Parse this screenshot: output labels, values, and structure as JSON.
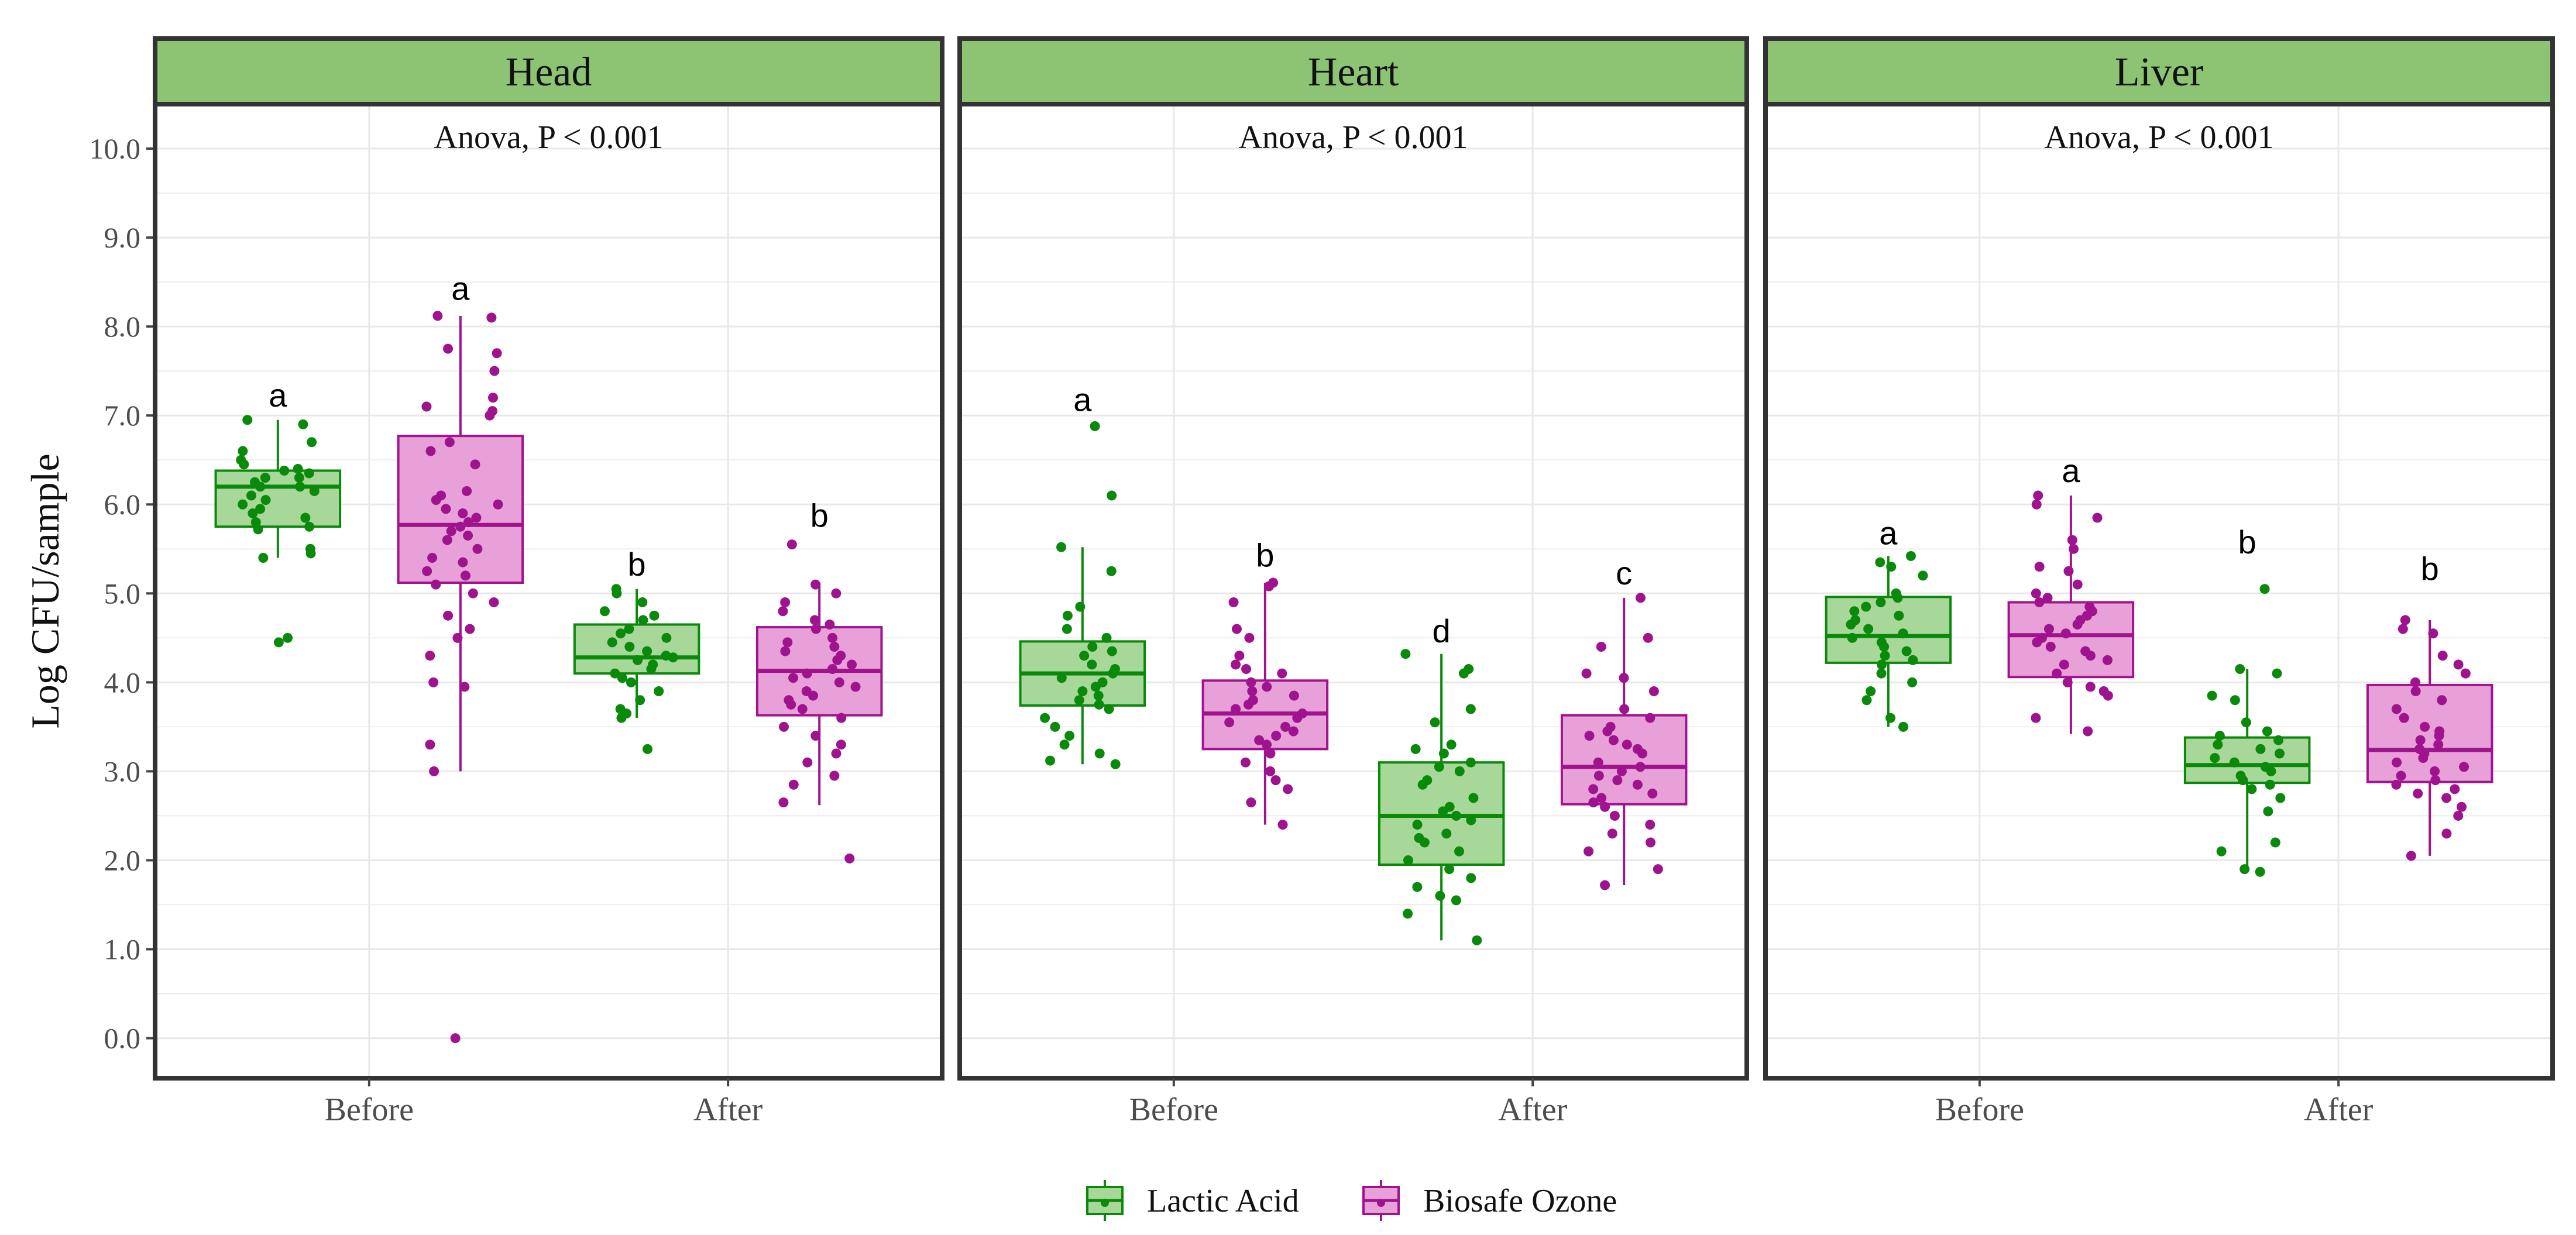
{
  "chart_data": {
    "type": "boxplot",
    "ylabel": "Log CFU/sample",
    "xlabel": "",
    "ylim": [
      -0.45,
      10.5
    ],
    "yticks": [
      0.0,
      1.0,
      2.0,
      3.0,
      4.0,
      5.0,
      6.0,
      7.0,
      8.0,
      9.0,
      10.0
    ],
    "ytick_labels": [
      "0.0",
      "1.0",
      "2.0",
      "3.0",
      "4.0",
      "5.0",
      "6.0",
      "7.0",
      "8.0",
      "9.0",
      "10.0"
    ],
    "categories": [
      "Before",
      "After"
    ],
    "legend": {
      "placement": "bottom",
      "entries": [
        {
          "name": "Lactic Acid",
          "stroke": "#0a8a0a",
          "fill": "#a8d79a"
        },
        {
          "name": "Biosafe Ozone",
          "stroke": "#a0138e",
          "fill": "#e8a0d8"
        }
      ]
    },
    "colors": {
      "strip_fill": "#8cc474",
      "panel_border": "#333333",
      "grid": "#e8e8e8",
      "lactic_point": "#0a8a0a",
      "ozone_point": "#a0138e"
    },
    "panels": [
      {
        "title": "Head",
        "annotation": "Anova, P < 0.001",
        "groups": [
          {
            "category": "Before",
            "series": "Lactic Acid",
            "q1": 5.75,
            "median": 6.2,
            "q3": 6.38,
            "whisker_low": 5.4,
            "whisker_high": 6.95,
            "letter": "a",
            "letter_y": 7.1,
            "points": [
              6.95,
              6.9,
              6.7,
              6.6,
              6.5,
              6.45,
              6.4,
              6.38,
              6.35,
              6.3,
              6.3,
              6.25,
              6.2,
              6.2,
              6.15,
              6.1,
              6.05,
              6.0,
              5.95,
              5.9,
              5.85,
              5.8,
              5.75,
              5.72,
              5.5,
              5.45,
              5.4,
              4.5,
              4.45
            ]
          },
          {
            "category": "Before",
            "series": "Biosafe Ozone",
            "q1": 5.12,
            "median": 5.77,
            "q3": 6.77,
            "whisker_low": 3.0,
            "whisker_high": 8.12,
            "letter": "a",
            "letter_y": 8.3,
            "points": [
              8.12,
              8.1,
              7.75,
              7.7,
              7.5,
              7.2,
              7.1,
              7.05,
              7.0,
              6.7,
              6.6,
              6.45,
              6.15,
              6.1,
              6.05,
              6.0,
              5.95,
              5.9,
              5.85,
              5.8,
              5.75,
              5.7,
              5.65,
              5.6,
              5.5,
              5.4,
              5.35,
              5.25,
              5.2,
              5.1,
              5.0,
              4.9,
              4.75,
              4.6,
              4.5,
              4.3,
              4.0,
              3.95,
              3.3,
              3.0,
              0.0
            ]
          },
          {
            "category": "After",
            "series": "Lactic Acid",
            "q1": 4.1,
            "median": 4.28,
            "q3": 4.65,
            "whisker_low": 3.6,
            "whisker_high": 5.05,
            "letter": "b",
            "letter_y": 5.2,
            "points": [
              5.05,
              5.0,
              4.9,
              4.8,
              4.75,
              4.7,
              4.6,
              4.55,
              4.5,
              4.45,
              4.4,
              4.35,
              4.3,
              4.28,
              4.25,
              4.2,
              4.15,
              4.1,
              4.05,
              4.0,
              3.9,
              3.8,
              3.7,
              3.65,
              3.6,
              3.25
            ]
          },
          {
            "category": "After",
            "series": "Biosafe Ozone",
            "q1": 3.63,
            "median": 4.13,
            "q3": 4.62,
            "whisker_low": 2.62,
            "whisker_high": 5.12,
            "letter": "b",
            "letter_y": 5.75,
            "points": [
              5.55,
              5.1,
              5.0,
              4.9,
              4.8,
              4.7,
              4.65,
              4.6,
              4.5,
              4.45,
              4.4,
              4.35,
              4.3,
              4.25,
              4.2,
              4.15,
              4.1,
              4.05,
              4.0,
              3.95,
              3.9,
              3.85,
              3.8,
              3.75,
              3.7,
              3.6,
              3.5,
              3.4,
              3.3,
              3.2,
              3.1,
              2.95,
              2.85,
              2.65,
              2.02
            ]
          }
        ]
      },
      {
        "title": "Heart",
        "annotation": "Anova, P < 0.001",
        "groups": [
          {
            "category": "Before",
            "series": "Lactic Acid",
            "q1": 3.74,
            "median": 4.1,
            "q3": 4.46,
            "whisker_low": 3.08,
            "whisker_high": 5.52,
            "letter": "a",
            "letter_y": 7.05,
            "points": [
              6.88,
              6.1,
              5.52,
              5.25,
              4.85,
              4.75,
              4.6,
              4.5,
              4.4,
              4.35,
              4.3,
              4.2,
              4.15,
              4.1,
              4.05,
              4.0,
              3.95,
              3.9,
              3.85,
              3.8,
              3.75,
              3.7,
              3.6,
              3.5,
              3.4,
              3.3,
              3.2,
              3.12,
              3.08
            ]
          },
          {
            "category": "Before",
            "series": "Biosafe Ozone",
            "q1": 3.25,
            "median": 3.65,
            "q3": 4.02,
            "whisker_low": 2.4,
            "whisker_high": 5.12,
            "letter": "b",
            "letter_y": 5.3,
            "points": [
              5.12,
              5.08,
              4.9,
              4.6,
              4.5,
              4.3,
              4.2,
              4.15,
              4.1,
              4.0,
              3.95,
              3.9,
              3.85,
              3.8,
              3.75,
              3.7,
              3.65,
              3.6,
              3.55,
              3.5,
              3.45,
              3.4,
              3.35,
              3.3,
              3.2,
              3.1,
              3.0,
              2.9,
              2.8,
              2.65,
              2.4
            ]
          },
          {
            "category": "After",
            "series": "Lactic Acid",
            "q1": 1.95,
            "median": 2.5,
            "q3": 3.1,
            "whisker_low": 1.1,
            "whisker_high": 4.32,
            "letter": "d",
            "letter_y": 4.45,
            "points": [
              4.32,
              4.15,
              4.1,
              3.7,
              3.55,
              3.3,
              3.25,
              3.2,
              3.1,
              3.05,
              3.0,
              2.9,
              2.85,
              2.7,
              2.6,
              2.55,
              2.5,
              2.45,
              2.4,
              2.3,
              2.25,
              2.2,
              2.1,
              2.0,
              1.9,
              1.8,
              1.7,
              1.6,
              1.55,
              1.4,
              1.1
            ]
          },
          {
            "category": "After",
            "series": "Biosafe Ozone",
            "q1": 2.63,
            "median": 3.05,
            "q3": 3.63,
            "whisker_low": 1.72,
            "whisker_high": 4.95,
            "letter": "c",
            "letter_y": 5.1,
            "points": [
              4.95,
              4.5,
              4.4,
              4.1,
              4.05,
              3.9,
              3.7,
              3.6,
              3.5,
              3.45,
              3.4,
              3.35,
              3.3,
              3.25,
              3.2,
              3.1,
              3.05,
              3.0,
              2.95,
              2.9,
              2.85,
              2.8,
              2.75,
              2.7,
              2.65,
              2.6,
              2.5,
              2.4,
              2.3,
              2.2,
              2.1,
              1.9,
              1.72
            ]
          }
        ]
      },
      {
        "title": "Liver",
        "annotation": "Anova, P < 0.001",
        "groups": [
          {
            "category": "Before",
            "series": "Lactic Acid",
            "q1": 4.22,
            "median": 4.52,
            "q3": 4.96,
            "whisker_low": 3.5,
            "whisker_high": 5.42,
            "letter": "a",
            "letter_y": 5.55,
            "points": [
              5.42,
              5.35,
              5.3,
              5.2,
              5.0,
              4.95,
              4.9,
              4.85,
              4.8,
              4.75,
              4.7,
              4.65,
              4.6,
              4.55,
              4.5,
              4.45,
              4.4,
              4.35,
              4.3,
              4.25,
              4.2,
              4.1,
              4.0,
              3.9,
              3.8,
              3.6,
              3.5
            ]
          },
          {
            "category": "Before",
            "series": "Biosafe Ozone",
            "q1": 4.06,
            "median": 4.53,
            "q3": 4.9,
            "whisker_low": 3.42,
            "whisker_high": 6.1,
            "letter": "a",
            "letter_y": 6.25,
            "points": [
              6.1,
              6.0,
              5.85,
              5.6,
              5.5,
              5.3,
              5.25,
              5.1,
              5.0,
              4.95,
              4.9,
              4.85,
              4.8,
              4.75,
              4.7,
              4.65,
              4.6,
              4.55,
              4.5,
              4.45,
              4.4,
              4.35,
              4.3,
              4.25,
              4.2,
              4.1,
              4.0,
              3.95,
              3.9,
              3.85,
              3.6,
              3.45
            ]
          },
          {
            "category": "After",
            "series": "Lactic Acid",
            "q1": 2.87,
            "median": 3.07,
            "q3": 3.38,
            "whisker_low": 1.87,
            "whisker_high": 4.15,
            "letter": "b",
            "letter_y": 5.45,
            "points": [
              5.05,
              4.15,
              4.1,
              3.85,
              3.8,
              3.55,
              3.45,
              3.4,
              3.35,
              3.3,
              3.25,
              3.2,
              3.15,
              3.1,
              3.05,
              3.0,
              2.95,
              2.9,
              2.85,
              2.8,
              2.7,
              2.55,
              2.2,
              2.1,
              1.9,
              1.87
            ]
          },
          {
            "category": "After",
            "series": "Biosafe Ozone",
            "q1": 2.88,
            "median": 3.24,
            "q3": 3.97,
            "whisker_low": 2.05,
            "whisker_high": 4.7,
            "letter": "b",
            "letter_y": 5.15,
            "points": [
              4.7,
              4.6,
              4.55,
              4.3,
              4.2,
              4.1,
              4.0,
              3.9,
              3.8,
              3.7,
              3.6,
              3.5,
              3.45,
              3.4,
              3.35,
              3.3,
              3.25,
              3.2,
              3.15,
              3.1,
              3.05,
              3.0,
              2.95,
              2.9,
              2.85,
              2.8,
              2.75,
              2.7,
              2.6,
              2.5,
              2.3,
              2.05
            ]
          }
        ]
      }
    ]
  }
}
